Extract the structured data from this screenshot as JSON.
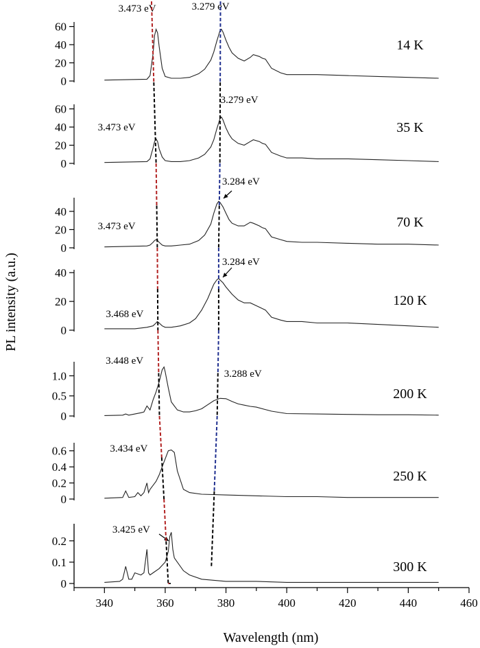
{
  "chart_data": {
    "type": "line",
    "xlabel": "Wavelength (nm)",
    "ylabel": "PL intensity (a.u.)",
    "xlim": [
      330,
      460
    ],
    "x_ticks": [
      340,
      360,
      380,
      400,
      420,
      440,
      460
    ],
    "grid": false,
    "panels": [
      {
        "name": "14 K",
        "ylim": [
          0,
          65
        ],
        "y_ticks": [
          0,
          20,
          40,
          60
        ],
        "y_tick_labels": [
          "0",
          "20",
          "40",
          "60"
        ],
        "annotations": [
          {
            "text": "3.473 eV",
            "peak_x": 357.0
          },
          {
            "text": "3.279 eV",
            "peak_x": 378.2
          }
        ],
        "x": [
          340,
          354,
          355,
          356,
          356.5,
          357,
          357.5,
          358,
          359,
          360,
          362,
          365,
          368,
          371,
          373,
          375,
          376,
          377,
          378,
          378.5,
          379,
          380,
          381,
          382,
          384,
          386,
          388,
          389,
          391,
          392,
          393,
          395,
          398,
          400,
          405,
          410,
          420,
          430,
          440,
          450
        ],
        "y": [
          1,
          2,
          6,
          30,
          50,
          57,
          53,
          38,
          14,
          5,
          3,
          3,
          4,
          8,
          13,
          23,
          32,
          44,
          55,
          57,
          54,
          45,
          37,
          31,
          25,
          22,
          26,
          29,
          27,
          25,
          24,
          14,
          9,
          7,
          7,
          7,
          6,
          5,
          4,
          3
        ]
      },
      {
        "name": "35 K",
        "ylim": [
          0,
          65
        ],
        "y_ticks": [
          0,
          20,
          40,
          60
        ],
        "y_tick_labels": [
          "0",
          "20",
          "40",
          "60"
        ],
        "annotations": [
          {
            "text": "3.473 eV",
            "peak_x": 357.0
          },
          {
            "text": "3.279 eV",
            "peak_x": 378.2
          }
        ],
        "x": [
          340,
          354,
          355,
          356,
          356.5,
          357,
          357.5,
          358,
          359,
          360,
          362,
          365,
          368,
          371,
          373,
          375,
          376,
          377,
          378,
          378.5,
          379,
          380,
          381,
          382,
          384,
          386,
          388,
          389,
          391,
          392,
          393,
          395,
          398,
          400,
          405,
          410,
          420,
          430,
          440,
          450
        ],
        "y": [
          1,
          2,
          5,
          17,
          24,
          27,
          24,
          16,
          7,
          3,
          2,
          2,
          3,
          6,
          10,
          18,
          26,
          38,
          49,
          51,
          48,
          39,
          32,
          27,
          22,
          20,
          24,
          26,
          24,
          22,
          21,
          12,
          8,
          6,
          6,
          5,
          5,
          4,
          3,
          2
        ]
      },
      {
        "name": "70 K",
        "ylim": [
          0,
          55
        ],
        "y_ticks": [
          0,
          20,
          40
        ],
        "y_tick_labels": [
          "0",
          "20",
          "40"
        ],
        "annotations": [
          {
            "text": "3.473 eV",
            "peak_x": 357.0
          },
          {
            "text": "3.284 eV",
            "peak_x": 377.6
          }
        ],
        "x": [
          340,
          354,
          355,
          356,
          356.5,
          357,
          357.5,
          358,
          359,
          360,
          362,
          365,
          368,
          371,
          373,
          375,
          376,
          377,
          377.6,
          378,
          379,
          380,
          381,
          382,
          384,
          386,
          388,
          389,
          391,
          392,
          393,
          395,
          398,
          400,
          405,
          410,
          420,
          430,
          440,
          450
        ],
        "y": [
          1,
          2,
          3,
          6,
          8,
          9,
          8,
          6,
          3,
          2,
          2,
          3,
          4,
          8,
          14,
          26,
          38,
          48,
          51,
          50,
          45,
          38,
          31,
          27,
          24,
          24,
          28,
          27,
          24,
          22,
          21,
          12,
          9,
          7,
          6,
          6,
          5,
          4,
          4,
          3
        ]
      },
      {
        "name": "120 K",
        "ylim": [
          0,
          42
        ],
        "y_ticks": [
          0,
          20,
          40
        ],
        "y_tick_labels": [
          "0",
          "20",
          "40"
        ],
        "annotations": [
          {
            "text": "3.468 eV",
            "peak_x": 357.4
          },
          {
            "text": "3.284 eV",
            "peak_x": 377.6
          }
        ],
        "x": [
          340,
          350,
          354,
          356,
          357,
          357.4,
          358,
          359,
          360,
          362,
          365,
          368,
          370,
          372,
          374,
          375,
          376,
          377,
          377.6,
          378,
          379,
          380,
          382,
          384,
          386,
          388,
          390,
          392,
          393,
          395,
          398,
          400,
          405,
          410,
          420,
          430,
          440,
          450
        ],
        "y": [
          1,
          1,
          2,
          3,
          5,
          6,
          5,
          3,
          2,
          2,
          3,
          5,
          8,
          14,
          22,
          27,
          32,
          35,
          36,
          35,
          33,
          30,
          25,
          21,
          19,
          19,
          17,
          15,
          14,
          9,
          7,
          6,
          6,
          5,
          5,
          4,
          3,
          2
        ]
      },
      {
        "name": "200 K",
        "ylim": [
          0,
          1.35
        ],
        "y_ticks": [
          0,
          0.5,
          1.0
        ],
        "y_tick_labels": [
          "0",
          "0.5",
          "1.0"
        ],
        "annotations": [
          {
            "text": "3.448 eV",
            "peak_x": 359.6
          },
          {
            "text": "3.288 eV",
            "peak_x": 377.1
          }
        ],
        "x": [
          340,
          346,
          347,
          348,
          350,
          352,
          353,
          354,
          355,
          356,
          357,
          358,
          359,
          359.6,
          360,
          361,
          362,
          364,
          366,
          368,
          370,
          372,
          374,
          376,
          378,
          380,
          382,
          384,
          386,
          388,
          390,
          395,
          400,
          410,
          420,
          430,
          440,
          450
        ],
        "y": [
          0.01,
          0.02,
          0.05,
          0.02,
          0.05,
          0.08,
          0.1,
          0.25,
          0.15,
          0.4,
          0.6,
          0.85,
          1.15,
          1.22,
          1.1,
          0.7,
          0.35,
          0.15,
          0.1,
          0.1,
          0.13,
          0.18,
          0.28,
          0.38,
          0.44,
          0.43,
          0.36,
          0.3,
          0.27,
          0.24,
          0.22,
          0.12,
          0.06,
          0.05,
          0.04,
          0.03,
          0.03,
          0.02
        ]
      },
      {
        "name": "250 K",
        "ylim": [
          0,
          0.7
        ],
        "y_ticks": [
          0,
          0.2,
          0.4,
          0.6
        ],
        "y_tick_labels": [
          "0",
          "0.2",
          "0.4",
          "0.6"
        ],
        "annotations": [
          {
            "text": "3.434 eV",
            "peak_x": 361.0
          }
        ],
        "x": [
          340,
          346,
          347,
          348,
          350,
          351,
          352,
          353,
          354,
          354.5,
          355,
          356,
          357,
          358,
          359,
          360,
          361,
          362,
          363,
          364,
          366,
          368,
          372,
          380,
          390,
          400,
          410,
          420,
          430,
          440,
          450
        ],
        "y": [
          0.01,
          0.02,
          0.1,
          0.02,
          0.03,
          0.08,
          0.04,
          0.08,
          0.2,
          0.08,
          0.12,
          0.17,
          0.22,
          0.3,
          0.4,
          0.5,
          0.6,
          0.61,
          0.58,
          0.35,
          0.12,
          0.08,
          0.06,
          0.05,
          0.04,
          0.03,
          0.03,
          0.02,
          0.02,
          0.02,
          0.02
        ]
      },
      {
        "name": "300 K",
        "ylim": [
          0,
          0.28
        ],
        "y_ticks": [
          0,
          0.1,
          0.2
        ],
        "y_tick_labels": [
          "0",
          "0.1",
          "0.2"
        ],
        "annotations": [
          {
            "text": "3.425 eV",
            "peak_x": 361.8
          }
        ],
        "x": [
          340,
          345,
          346,
          347,
          348,
          349,
          350,
          352,
          353,
          354,
          354.5,
          355,
          356,
          358,
          360,
          361,
          361.5,
          362,
          362.5,
          363,
          364,
          366,
          368,
          372,
          380,
          390,
          400,
          420,
          440,
          450
        ],
        "y": [
          0.005,
          0.01,
          0.02,
          0.08,
          0.02,
          0.02,
          0.05,
          0.04,
          0.05,
          0.16,
          0.05,
          0.04,
          0.05,
          0.07,
          0.1,
          0.15,
          0.22,
          0.24,
          0.16,
          0.12,
          0.1,
          0.06,
          0.04,
          0.02,
          0.01,
          0.01,
          0.005,
          0.005,
          0.005,
          0.005
        ]
      }
    ],
    "guide_lines": [
      {
        "color": "#b22222",
        "segments": [
          [
            355.5,
            0
          ],
          [
            357.0,
            1
          ],
          [
            357.4,
            2
          ],
          [
            357.6,
            3
          ],
          [
            358.1,
            4
          ],
          [
            359.6,
            5
          ],
          [
            361.0,
            6
          ],
          [
            361.8,
            7
          ]
        ]
      },
      {
        "color": "#1f2f8f",
        "segments": [
          [
            378.2,
            0
          ],
          [
            378.0,
            1
          ],
          [
            377.6,
            2
          ],
          [
            377.6,
            3
          ],
          [
            377.1,
            4
          ],
          [
            375.2,
            5.8
          ]
        ]
      }
    ],
    "colors": {
      "spectrum": "#222222",
      "axes": "#000000",
      "guide_red": "#b22222",
      "guide_blue": "#1f2f8f",
      "guide_black": "#000000"
    }
  }
}
